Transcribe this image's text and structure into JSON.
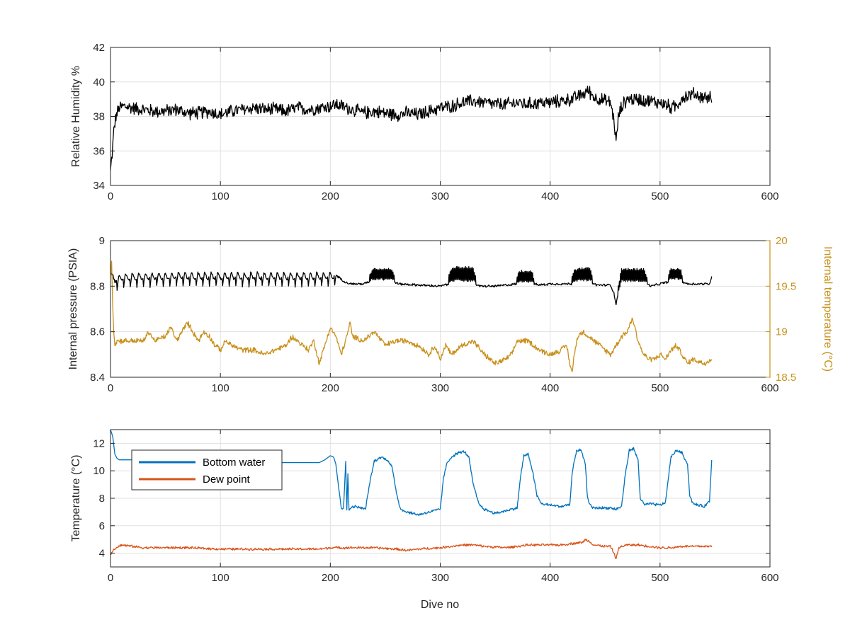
{
  "chart_data": [
    {
      "id": "humidity",
      "type": "line",
      "xlabel": "",
      "ylabel": "Relative Humidity %",
      "xlim": [
        0,
        600
      ],
      "ylim": [
        34,
        42
      ],
      "xticks": [
        "0",
        "100",
        "200",
        "300",
        "400",
        "500",
        "600"
      ],
      "yticks": [
        "34",
        "36",
        "38",
        "40",
        "42"
      ],
      "grid": true,
      "series": [
        {
          "color": "#000000",
          "noise": 0.45,
          "x": [
            0,
            1,
            2,
            3,
            5,
            8,
            12,
            20,
            30,
            40,
            50,
            60,
            70,
            80,
            90,
            100,
            110,
            120,
            130,
            140,
            150,
            160,
            170,
            180,
            190,
            200,
            205,
            210,
            220,
            230,
            240,
            250,
            260,
            270,
            280,
            290,
            300,
            310,
            320,
            330,
            340,
            350,
            360,
            370,
            380,
            390,
            400,
            410,
            420,
            430,
            435,
            440,
            450,
            455,
            458,
            460,
            462,
            465,
            470,
            480,
            490,
            500,
            505,
            510,
            515,
            520,
            530,
            540,
            547
          ],
          "y": [
            34.8,
            35.5,
            36.2,
            37.2,
            38.0,
            38.5,
            38.6,
            38.5,
            38.4,
            38.3,
            38.3,
            38.4,
            38.2,
            38.2,
            38.3,
            38.1,
            38.3,
            38.4,
            38.5,
            38.4,
            38.4,
            38.3,
            38.5,
            38.4,
            38.5,
            38.6,
            38.7,
            38.6,
            38.4,
            38.2,
            38.3,
            38.2,
            38.1,
            38.2,
            38.1,
            38.3,
            38.5,
            38.6,
            38.8,
            38.9,
            38.8,
            38.7,
            38.7,
            38.8,
            38.7,
            38.8,
            38.8,
            38.9,
            39.0,
            39.3,
            39.5,
            39.1,
            38.9,
            38.8,
            37.8,
            36.5,
            37.9,
            38.6,
            39.0,
            39.0,
            38.9,
            38.8,
            38.7,
            38.5,
            38.6,
            39.1,
            39.3,
            39.1,
            39.1
          ]
        }
      ]
    },
    {
      "id": "pressure_temperature",
      "type": "line",
      "xlabel": "",
      "ylabel": "Internal pressure (PSIA)",
      "ylabel_right": "Internal temperature (°C)",
      "xlim": [
        0,
        600
      ],
      "ylim": [
        8.4,
        9.0
      ],
      "ylim_right": [
        18.5,
        20.0
      ],
      "xticks": [
        "0",
        "100",
        "200",
        "300",
        "400",
        "500",
        "600"
      ],
      "yticks": [
        "8.4",
        "8.6",
        "8.8",
        "9"
      ],
      "yticks_right": [
        "18.5",
        "19",
        "19.5",
        "20"
      ],
      "grid": true,
      "series": [
        {
          "color": "#000000",
          "axis": "left",
          "noise": 0.006,
          "oscillation": {
            "ranges": [
              [
                5,
                205
              ]
            ],
            "period": 6,
            "amplitude": 0.045
          },
          "bursts": [
            [
              236,
              258,
              0.07
            ],
            [
              308,
              332,
              0.09
            ],
            [
              370,
              385,
              0.07
            ],
            [
              420,
              438,
              0.08
            ],
            [
              462,
              488,
              0.08
            ],
            [
              508,
              520,
              0.07
            ]
          ],
          "x": [
            0,
            2,
            4,
            6,
            10,
            50,
            100,
            150,
            200,
            205,
            210,
            215,
            220,
            230,
            236,
            258,
            262,
            280,
            300,
            308,
            332,
            336,
            350,
            370,
            385,
            390,
            400,
            410,
            420,
            438,
            442,
            455,
            458,
            460,
            462,
            465,
            488,
            492,
            500,
            508,
            520,
            525,
            535,
            540,
            545,
            547
          ],
          "y": [
            8.86,
            8.85,
            8.82,
            8.83,
            8.84,
            8.845,
            8.845,
            8.845,
            8.845,
            8.85,
            8.83,
            8.815,
            8.81,
            8.81,
            8.82,
            8.82,
            8.81,
            8.805,
            8.8,
            8.81,
            8.81,
            8.8,
            8.8,
            8.81,
            8.81,
            8.805,
            8.81,
            8.81,
            8.81,
            8.815,
            8.805,
            8.805,
            8.77,
            8.72,
            8.77,
            8.81,
            8.81,
            8.8,
            8.81,
            8.82,
            8.82,
            8.81,
            8.81,
            8.81,
            8.81,
            8.84
          ]
        },
        {
          "color": "#C8901A",
          "axis": "right",
          "noise": 0.035,
          "x": [
            0,
            1,
            2,
            3,
            4,
            6,
            10,
            20,
            30,
            35,
            40,
            50,
            55,
            60,
            70,
            75,
            80,
            85,
            90,
            95,
            100,
            105,
            110,
            120,
            130,
            140,
            150,
            160,
            165,
            170,
            180,
            185,
            190,
            195,
            200,
            205,
            210,
            215,
            218,
            220,
            230,
            240,
            250,
            260,
            270,
            280,
            290,
            295,
            300,
            305,
            310,
            320,
            330,
            340,
            345,
            350,
            360,
            365,
            370,
            380,
            390,
            400,
            410,
            415,
            418,
            420,
            422,
            425,
            430,
            435,
            440,
            450,
            455,
            460,
            465,
            470,
            475,
            478,
            480,
            485,
            490,
            495,
            500,
            505,
            510,
            515,
            520,
            525,
            530,
            540,
            547
          ],
          "y": [
            19.6,
            19.8,
            19.3,
            19.0,
            18.85,
            18.9,
            18.9,
            18.9,
            18.9,
            19.0,
            18.9,
            18.95,
            19.05,
            18.9,
            19.1,
            19.0,
            18.9,
            19.0,
            18.95,
            18.85,
            18.8,
            18.9,
            18.85,
            18.8,
            18.8,
            18.75,
            18.8,
            18.85,
            18.95,
            18.9,
            18.8,
            18.9,
            18.65,
            18.85,
            19.05,
            18.95,
            18.75,
            18.95,
            19.1,
            18.95,
            18.9,
            19.0,
            18.85,
            18.9,
            18.9,
            18.85,
            18.75,
            18.85,
            18.7,
            18.85,
            18.75,
            18.85,
            18.9,
            18.75,
            18.7,
            18.65,
            18.7,
            18.75,
            18.9,
            18.9,
            18.8,
            18.75,
            18.8,
            18.85,
            18.65,
            18.55,
            18.75,
            18.95,
            19.0,
            18.95,
            18.9,
            18.8,
            18.75,
            18.85,
            18.95,
            19.0,
            19.15,
            19.0,
            18.9,
            18.75,
            18.7,
            18.7,
            18.75,
            18.7,
            18.8,
            18.85,
            18.75,
            18.65,
            18.7,
            18.65,
            18.7
          ]
        }
      ]
    },
    {
      "id": "temperature",
      "type": "line",
      "xlabel": "Dive no",
      "ylabel": "Temperature (°C)",
      "xlim": [
        0,
        600
      ],
      "ylim": [
        3,
        13
      ],
      "xticks": [
        "0",
        "100",
        "200",
        "300",
        "400",
        "500",
        "600"
      ],
      "yticks": [
        "4",
        "6",
        "8",
        "10",
        "12"
      ],
      "grid": true,
      "legend_position": "top-left",
      "series": [
        {
          "name": "Bottom water",
          "color": "#0072BD",
          "noise": 0.12,
          "noise_ranges": [
            [
              205,
              547
            ]
          ],
          "x": [
            0,
            2,
            4,
            6,
            8,
            10,
            15,
            40,
            80,
            100,
            150,
            190,
            195,
            200,
            203,
            205,
            208,
            210,
            212,
            214,
            215,
            216,
            217,
            218,
            222,
            228,
            232,
            236,
            240,
            246,
            252,
            256,
            260,
            263,
            266,
            270,
            280,
            290,
            300,
            303,
            306,
            310,
            316,
            322,
            326,
            330,
            335,
            340,
            350,
            360,
            370,
            373,
            376,
            380,
            384,
            388,
            392,
            400,
            410,
            415,
            418,
            420,
            424,
            428,
            432,
            434,
            438,
            445,
            455,
            460,
            465,
            468,
            472,
            476,
            480,
            482,
            486,
            490,
            500,
            505,
            508,
            510,
            515,
            520,
            525,
            527,
            530,
            540,
            545,
            547
          ],
          "y": [
            13.0,
            12.5,
            11.2,
            10.9,
            10.8,
            10.8,
            10.8,
            10.8,
            10.6,
            10.7,
            10.6,
            10.6,
            10.8,
            11.1,
            11.0,
            10.5,
            8.5,
            7.3,
            7.3,
            10.6,
            7.2,
            9.8,
            7.1,
            7.3,
            7.4,
            7.3,
            7.2,
            9.2,
            10.7,
            11.0,
            10.8,
            10.3,
            8.5,
            7.4,
            7.1,
            7.0,
            6.8,
            7.0,
            7.2,
            9.5,
            10.5,
            11.0,
            11.3,
            11.4,
            11.0,
            9.0,
            7.6,
            7.2,
            6.9,
            7.1,
            7.3,
            9.5,
            11.1,
            11.2,
            10.0,
            8.2,
            7.6,
            7.5,
            7.4,
            7.5,
            7.6,
            9.8,
            11.5,
            11.5,
            10.5,
            8.0,
            7.3,
            7.3,
            7.3,
            7.2,
            7.4,
            9.5,
            11.5,
            11.6,
            10.8,
            8.0,
            7.5,
            7.6,
            7.5,
            7.7,
            9.8,
            11.0,
            11.5,
            11.3,
            10.5,
            8.2,
            7.6,
            7.4,
            7.8,
            10.8
          ]
        },
        {
          "name": "Dew point",
          "color": "#D95319",
          "noise": 0.1,
          "x": [
            0,
            2,
            5,
            10,
            20,
            30,
            50,
            70,
            100,
            130,
            160,
            190,
            200,
            210,
            220,
            240,
            260,
            270,
            280,
            300,
            320,
            330,
            340,
            360,
            380,
            400,
            410,
            420,
            430,
            432,
            435,
            440,
            450,
            455,
            458,
            460,
            462,
            465,
            470,
            480,
            490,
            500,
            510,
            520,
            530,
            540,
            547
          ],
          "y": [
            3.9,
            4.2,
            4.4,
            4.6,
            4.5,
            4.4,
            4.4,
            4.4,
            4.3,
            4.3,
            4.3,
            4.3,
            4.4,
            4.4,
            4.4,
            4.4,
            4.3,
            4.2,
            4.3,
            4.4,
            4.6,
            4.6,
            4.5,
            4.4,
            4.6,
            4.6,
            4.6,
            4.7,
            4.8,
            5.0,
            4.9,
            4.6,
            4.5,
            4.5,
            4.0,
            3.6,
            4.3,
            4.5,
            4.6,
            4.6,
            4.5,
            4.4,
            4.4,
            4.5,
            4.5,
            4.5,
            4.5
          ]
        }
      ]
    }
  ]
}
